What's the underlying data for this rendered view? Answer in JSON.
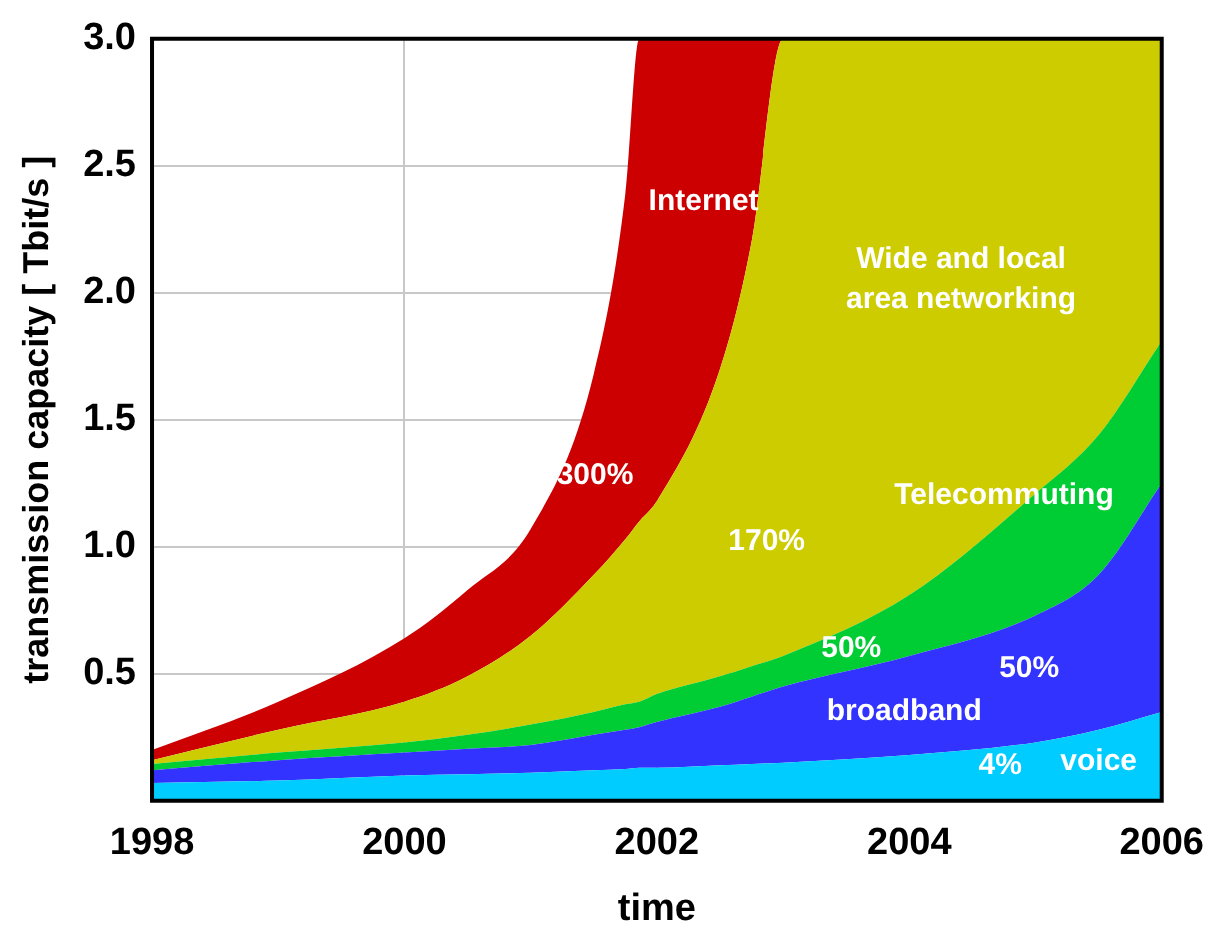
{
  "chart_data": {
    "type": "area",
    "stacked": true,
    "xlabel": "time",
    "ylabel": "transmission capacity [ Tbit/s ]",
    "x": [
      1998,
      1999,
      2000,
      2000.5,
      2001,
      2001.5,
      2001.75,
      2001.86,
      2002,
      2002.5,
      2002.75,
      2003,
      2004,
      2005,
      2005.5,
      2006
    ],
    "series": [
      {
        "name": "voice",
        "color": "#00ccff",
        "values": [
          0.07,
          0.08,
          0.1,
          0.105,
          0.11,
          0.12,
          0.125,
          0.13,
          0.13,
          0.14,
          0.145,
          0.15,
          0.18,
          0.23,
          0.28,
          0.35
        ]
      },
      {
        "name": "broadband",
        "color": "#3333ff",
        "values": [
          0.05,
          0.08,
          0.09,
          0.1,
          0.11,
          0.14,
          0.155,
          0.16,
          0.18,
          0.23,
          0.265,
          0.3,
          0.39,
          0.5,
          0.61,
          0.9
        ]
      },
      {
        "name": "Telecommuting",
        "color": "#00cc33",
        "values": [
          0.025,
          0.03,
          0.04,
          0.055,
          0.08,
          0.09,
          0.1,
          0.1,
          0.11,
          0.12,
          0.12,
          0.12,
          0.24,
          0.48,
          0.55,
          0.56
        ]
      },
      {
        "name": "Wide and local area networking",
        "color": "#cccc00",
        "values": [
          0.015,
          0.09,
          0.16,
          0.23,
          0.35,
          0.54,
          0.65,
          0.71,
          0.76,
          1.21,
          1.67,
          2.43,
          2.19,
          1.79,
          1.56,
          1.19
        ]
      },
      {
        "name": "Internet",
        "color": "#cc0000",
        "values": [
          0.04,
          0.11,
          0.25,
          0.34,
          0.42,
          0.79,
          1.36,
          1.9,
          1.82,
          1.3,
          0.8,
          0,
          null,
          null,
          null,
          null
        ]
      }
    ],
    "annotations": [
      "300%",
      "170%",
      "50%",
      "50%",
      "4%"
    ],
    "xlim": [
      1998,
      2006
    ],
    "xticks": [
      1998,
      2000,
      2002,
      2004,
      2006
    ],
    "ylim": [
      0,
      3
    ],
    "yticks": [
      0.5,
      {
        "value": 1,
        "label": "1.0"
      },
      1.5,
      {
        "value": 2,
        "label": "2.0"
      },
      2.5,
      {
        "value": 3,
        "label": "3.0"
      }
    ],
    "grid": true,
    "legend": false,
    "marker": "none"
  }
}
